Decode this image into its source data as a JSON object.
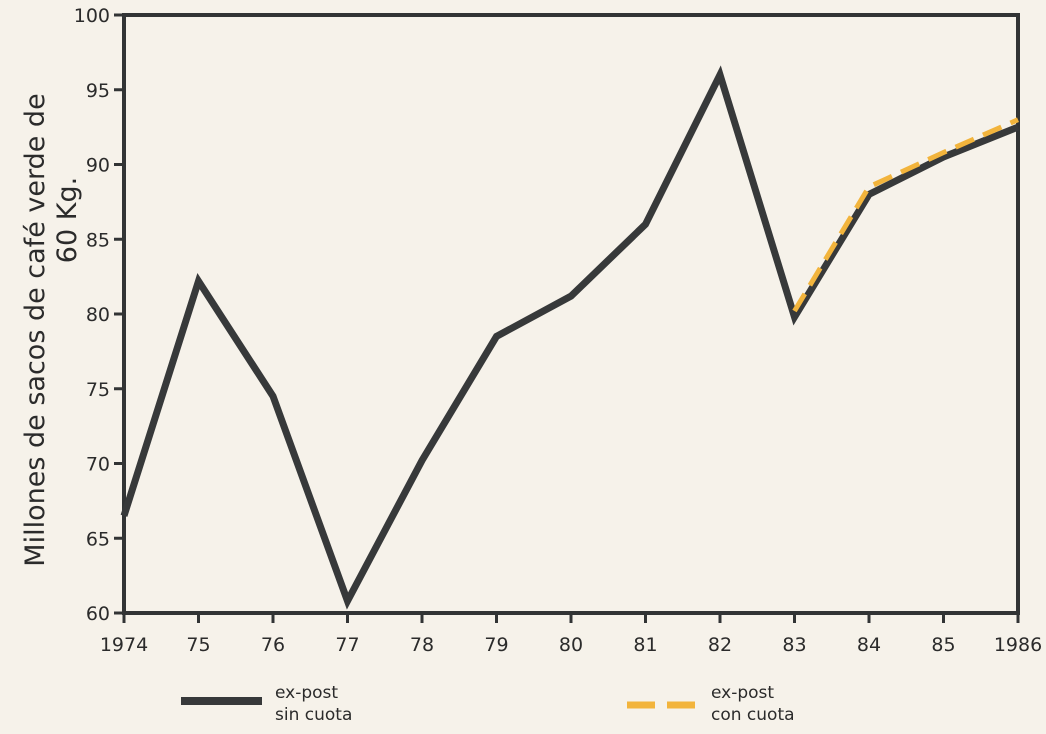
{
  "chart_data": {
    "type": "line",
    "title": "",
    "xlabel": "",
    "ylabel_line1": "Millones de sacos de café verde de",
    "ylabel_line2": "60 Kg.",
    "x_tick_labels": [
      "1974",
      "75",
      "76",
      "77",
      "78",
      "79",
      "80",
      "81",
      "82",
      "83",
      "84",
      "85",
      "1986"
    ],
    "y_tick_labels": [
      "60",
      "65",
      "70",
      "75",
      "80",
      "85",
      "90",
      "95",
      "100"
    ],
    "ylim": [
      60,
      100
    ],
    "grid": false,
    "legend_position": "bottom",
    "series": [
      {
        "name_line1": "ex-post",
        "name_line2": "sin cuota",
        "style": "solid",
        "color": "#37393a",
        "x": [
          1974,
          1975,
          1976,
          1977,
          1978,
          1979,
          1980,
          1981,
          1982,
          1983,
          1984,
          1985,
          1986
        ],
        "y": [
          66.5,
          82.2,
          74.5,
          60.8,
          70.2,
          78.5,
          81.2,
          86.0,
          96.0,
          79.8,
          88.0,
          90.5,
          92.5
        ]
      },
      {
        "name_line1": "ex-post",
        "name_line2": "con cuota",
        "style": "dashed",
        "color": "#f2b43c",
        "x": [
          1983,
          1984,
          1985,
          1986
        ],
        "y": [
          80.2,
          88.5,
          90.8,
          93.0
        ]
      }
    ]
  }
}
